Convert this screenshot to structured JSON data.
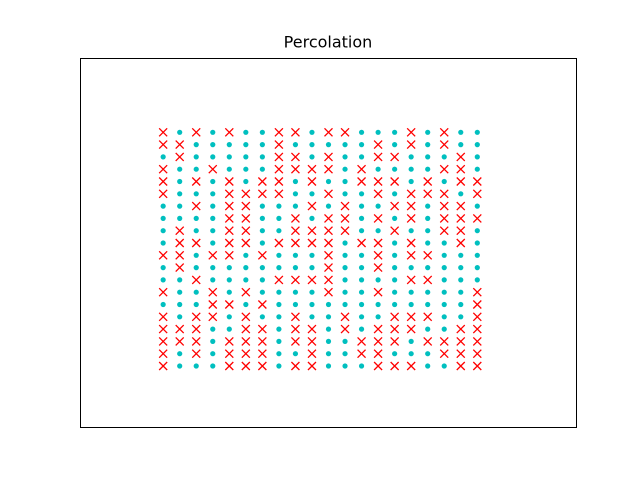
{
  "chart_data": {
    "type": "grid",
    "title": "Percolation",
    "xlim": [
      -5,
      25
    ],
    "ylim": [
      -5,
      25
    ],
    "x": [
      0,
      1,
      2,
      3,
      4,
      5,
      6,
      7,
      8,
      9,
      10,
      11,
      12,
      13,
      14,
      15,
      16,
      17,
      18,
      19
    ],
    "y": [
      19,
      18,
      17,
      16,
      15,
      14,
      13,
      12,
      11,
      10,
      9,
      8,
      7,
      6,
      5,
      4,
      3,
      2,
      1,
      0
    ],
    "markers": [
      {
        "color": "#00bfbf",
        "shape": "o"
      },
      {
        "color": "#ff0000",
        "shape": "x"
      }
    ],
    "values": [
      [
        1,
        0,
        1,
        0,
        1,
        0,
        0,
        1,
        1,
        0,
        1,
        1,
        0,
        0,
        0,
        1,
        0,
        1,
        0,
        0
      ],
      [
        1,
        1,
        0,
        0,
        0,
        0,
        0,
        1,
        0,
        0,
        0,
        0,
        0,
        1,
        0,
        1,
        0,
        1,
        0,
        0
      ],
      [
        0,
        1,
        0,
        0,
        0,
        0,
        0,
        1,
        1,
        0,
        1,
        0,
        0,
        1,
        1,
        0,
        0,
        0,
        1,
        0
      ],
      [
        1,
        0,
        0,
        1,
        0,
        0,
        0,
        1,
        1,
        1,
        1,
        0,
        1,
        0,
        0,
        0,
        0,
        1,
        1,
        0
      ],
      [
        1,
        0,
        1,
        0,
        1,
        0,
        1,
        1,
        0,
        1,
        0,
        0,
        1,
        1,
        1,
        0,
        1,
        0,
        1,
        1
      ],
      [
        1,
        0,
        0,
        0,
        1,
        1,
        1,
        1,
        0,
        0,
        1,
        0,
        0,
        1,
        0,
        1,
        1,
        1,
        0,
        1
      ],
      [
        0,
        0,
        1,
        0,
        1,
        1,
        0,
        0,
        0,
        1,
        0,
        1,
        0,
        0,
        1,
        1,
        0,
        1,
        1,
        0
      ],
      [
        0,
        0,
        0,
        0,
        1,
        1,
        0,
        0,
        1,
        0,
        1,
        1,
        0,
        1,
        0,
        1,
        0,
        1,
        1,
        1
      ],
      [
        0,
        1,
        0,
        0,
        1,
        1,
        0,
        0,
        1,
        1,
        1,
        1,
        0,
        0,
        1,
        0,
        0,
        1,
        1,
        0
      ],
      [
        0,
        1,
        1,
        0,
        1,
        1,
        0,
        1,
        1,
        1,
        1,
        0,
        1,
        1,
        0,
        1,
        0,
        0,
        1,
        0
      ],
      [
        1,
        1,
        0,
        1,
        1,
        0,
        1,
        0,
        0,
        0,
        1,
        0,
        0,
        1,
        0,
        1,
        1,
        0,
        0,
        0
      ],
      [
        0,
        1,
        0,
        0,
        0,
        0,
        0,
        0,
        0,
        0,
        1,
        0,
        0,
        1,
        0,
        0,
        0,
        0,
        0,
        0
      ],
      [
        0,
        0,
        1,
        0,
        0,
        0,
        0,
        1,
        1,
        1,
        1,
        0,
        0,
        0,
        0,
        1,
        1,
        0,
        0,
        0
      ],
      [
        1,
        0,
        0,
        1,
        0,
        1,
        0,
        0,
        0,
        0,
        1,
        0,
        0,
        1,
        0,
        0,
        0,
        0,
        0,
        1
      ],
      [
        0,
        0,
        0,
        1,
        1,
        0,
        1,
        0,
        0,
        0,
        0,
        0,
        0,
        0,
        0,
        0,
        0,
        0,
        0,
        1
      ],
      [
        1,
        0,
        1,
        1,
        0,
        1,
        0,
        0,
        1,
        0,
        0,
        1,
        0,
        0,
        1,
        1,
        1,
        0,
        0,
        1
      ],
      [
        1,
        1,
        1,
        0,
        0,
        1,
        1,
        0,
        1,
        1,
        0,
        1,
        0,
        1,
        1,
        1,
        0,
        0,
        1,
        1
      ],
      [
        1,
        1,
        1,
        0,
        1,
        1,
        1,
        0,
        1,
        1,
        0,
        0,
        1,
        1,
        1,
        0,
        1,
        1,
        1,
        1
      ],
      [
        1,
        0,
        1,
        0,
        1,
        1,
        1,
        0,
        0,
        1,
        0,
        0,
        1,
        1,
        0,
        0,
        0,
        1,
        1,
        1
      ],
      [
        1,
        0,
        0,
        0,
        1,
        1,
        1,
        0,
        1,
        1,
        0,
        0,
        0,
        1,
        1,
        1,
        0,
        0,
        1,
        1
      ]
    ]
  }
}
